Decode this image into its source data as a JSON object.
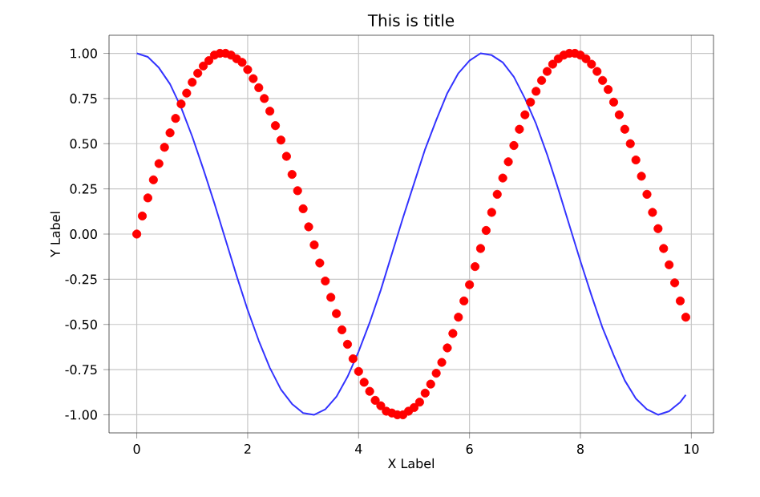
{
  "chart_data": {
    "type": "line",
    "title": "This is title",
    "xlabel": "X Label",
    "ylabel": "Y Label",
    "xlim": [
      -0.5,
      10.4
    ],
    "ylim": [
      -1.1,
      1.1
    ],
    "xticks": [
      0,
      2,
      4,
      6,
      8,
      10
    ],
    "yticks": [
      {
        "value": -1,
        "label": "-1.00"
      },
      {
        "value": -0.75,
        "label": "-0.75"
      },
      {
        "value": -0.5,
        "label": "-0.50"
      },
      {
        "value": -0.25,
        "label": "-0.25"
      },
      {
        "value": 0,
        "label": "0.00"
      },
      {
        "value": 0.25,
        "label": "0.25"
      },
      {
        "value": 0.5,
        "label": "0.50"
      },
      {
        "value": 0.75,
        "label": "0.75"
      },
      {
        "value": 1,
        "label": "1.00"
      }
    ],
    "grid": true,
    "series": [
      {
        "color": "#3333ff",
        "marker": "none",
        "line_style": "solid",
        "x": [
          0,
          0.2,
          0.4,
          0.6,
          0.8,
          1.0,
          1.2,
          1.4,
          1.6,
          1.8,
          2.0,
          2.2,
          2.4,
          2.6,
          2.8,
          3.0,
          3.2,
          3.4,
          3.6,
          3.8,
          4.0,
          4.2,
          4.4,
          4.6,
          4.8,
          5.0,
          5.2,
          5.4,
          5.6,
          5.8,
          6.0,
          6.2,
          6.4,
          6.6,
          6.8,
          7.0,
          7.2,
          7.4,
          7.6,
          7.8,
          8.0,
          8.2,
          8.4,
          8.6,
          8.8,
          9.0,
          9.2,
          9.4,
          9.6,
          9.8,
          9.9
        ],
        "values": [
          1.0,
          0.98,
          0.92,
          0.83,
          0.7,
          0.54,
          0.36,
          0.17,
          -0.03,
          -0.23,
          -0.42,
          -0.59,
          -0.74,
          -0.86,
          -0.94,
          -0.99,
          -1.0,
          -0.97,
          -0.9,
          -0.79,
          -0.65,
          -0.49,
          -0.31,
          -0.11,
          0.09,
          0.28,
          0.47,
          0.63,
          0.78,
          0.89,
          0.96,
          1.0,
          0.99,
          0.95,
          0.87,
          0.75,
          0.61,
          0.44,
          0.25,
          0.05,
          -0.15,
          -0.34,
          -0.52,
          -0.67,
          -0.81,
          -0.91,
          -0.97,
          -1.0,
          -0.98,
          -0.93,
          -0.89
        ]
      },
      {
        "type": "scatter",
        "color": "#ff0000",
        "marker": "circle",
        "x": [
          0,
          0.1,
          0.2,
          0.3,
          0.4,
          0.5,
          0.6,
          0.7,
          0.8,
          0.9,
          1.0,
          1.1,
          1.2,
          1.3,
          1.4,
          1.5,
          1.6,
          1.7,
          1.8,
          1.9,
          2.0,
          2.1,
          2.2,
          2.3,
          2.4,
          2.5,
          2.6,
          2.7,
          2.8,
          2.9,
          3.0,
          3.1,
          3.2,
          3.3,
          3.4,
          3.5,
          3.6,
          3.7,
          3.8,
          3.9,
          4.0,
          4.1,
          4.2,
          4.3,
          4.4,
          4.5,
          4.6,
          4.7,
          4.8,
          4.9,
          5.0,
          5.1,
          5.2,
          5.3,
          5.4,
          5.5,
          5.6,
          5.7,
          5.8,
          5.9,
          6.0,
          6.1,
          6.2,
          6.3,
          6.4,
          6.5,
          6.6,
          6.7,
          6.8,
          6.9,
          7.0,
          7.1,
          7.2,
          7.3,
          7.4,
          7.5,
          7.6,
          7.7,
          7.8,
          7.9,
          8.0,
          8.1,
          8.2,
          8.3,
          8.4,
          8.5,
          8.6,
          8.7,
          8.8,
          8.9,
          9.0,
          9.1,
          9.2,
          9.3,
          9.4,
          9.5,
          9.6,
          9.7,
          9.8,
          9.9
        ],
        "values": [
          0.0,
          0.1,
          0.2,
          0.3,
          0.39,
          0.48,
          0.56,
          0.64,
          0.72,
          0.78,
          0.84,
          0.89,
          0.93,
          0.96,
          0.99,
          1.0,
          1.0,
          0.99,
          0.97,
          0.95,
          0.91,
          0.86,
          0.81,
          0.75,
          0.68,
          0.6,
          0.52,
          0.43,
          0.33,
          0.24,
          0.14,
          0.04,
          -0.06,
          -0.16,
          -0.26,
          -0.35,
          -0.44,
          -0.53,
          -0.61,
          -0.69,
          -0.76,
          -0.82,
          -0.87,
          -0.92,
          -0.95,
          -0.98,
          -0.99,
          -1.0,
          -1.0,
          -0.98,
          -0.96,
          -0.93,
          -0.88,
          -0.83,
          -0.77,
          -0.71,
          -0.63,
          -0.55,
          -0.46,
          -0.37,
          -0.28,
          -0.18,
          -0.08,
          0.02,
          0.12,
          0.22,
          0.31,
          0.4,
          0.49,
          0.58,
          0.66,
          0.73,
          0.79,
          0.85,
          0.9,
          0.94,
          0.97,
          0.99,
          1.0,
          1.0,
          0.99,
          0.97,
          0.94,
          0.9,
          0.85,
          0.8,
          0.73,
          0.66,
          0.58,
          0.5,
          0.41,
          0.32,
          0.22,
          0.12,
          0.03,
          -0.08,
          -0.17,
          -0.27,
          -0.37,
          -0.46
        ]
      }
    ]
  }
}
